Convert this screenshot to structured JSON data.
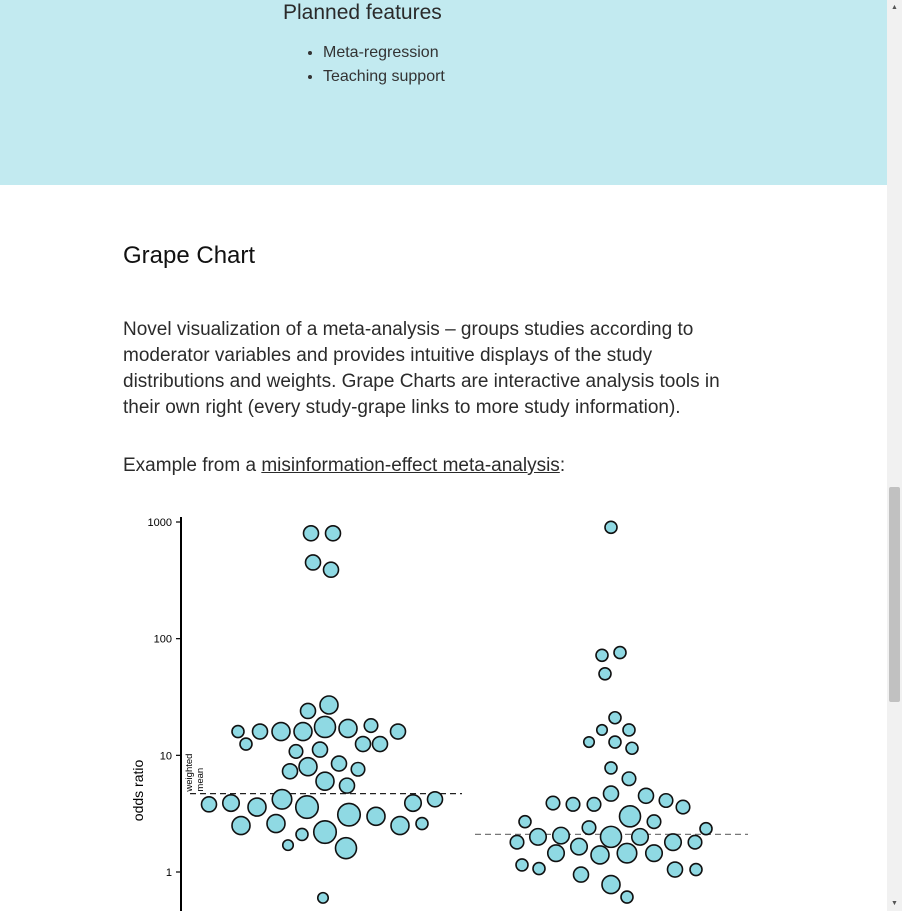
{
  "planned": {
    "title": "Planned features",
    "items": [
      "Meta-regression",
      "Teaching support"
    ]
  },
  "section": {
    "title": "Grape Chart",
    "description": "Novel visualization of a meta-analysis – groups studies according to moderator variables and provides intuitive displays of the study distributions and weights. Grape Charts are interactive analysis tools in their own right (every study-grape links to more study information).",
    "example_prefix": "Example from a ",
    "example_link": "misinformation-effect meta-analysis",
    "example_suffix": ":"
  },
  "colors": {
    "band": "#c2eaf0",
    "grape_fill": "#8fd9e3",
    "grape_stroke": "#111111"
  },
  "icons": {
    "scroll_up": "triangle-up-icon",
    "scroll_down": "triangle-down-icon"
  },
  "chart_data": {
    "type": "scatter",
    "ylabel": "odds ratio",
    "yscale": "log",
    "ylim": [
      0.5,
      1000
    ],
    "yticks": [
      1,
      10,
      100,
      1000
    ],
    "ytick_labels": [
      "1",
      "10",
      "100",
      "1000"
    ],
    "mean_label": "weighted mean",
    "groups": [
      {
        "weighted_mean": 4.7,
        "points": [
          {
            "dx": -12,
            "y": 800,
            "w": 1
          },
          {
            "dx": 10,
            "y": 800,
            "w": 1
          },
          {
            "dx": -10,
            "y": 450,
            "w": 1
          },
          {
            "dx": 8,
            "y": 390,
            "w": 1
          },
          {
            "dx": -15,
            "y": 24,
            "w": 1
          },
          {
            "dx": 6,
            "y": 27,
            "w": 1.2
          },
          {
            "dx": -85,
            "y": 16,
            "w": 0.8
          },
          {
            "dx": -63,
            "y": 16,
            "w": 1
          },
          {
            "dx": -42,
            "y": 16,
            "w": 1.2
          },
          {
            "dx": -20,
            "y": 16,
            "w": 1.2
          },
          {
            "dx": 2,
            "y": 17.5,
            "w": 1.4
          },
          {
            "dx": 25,
            "y": 17,
            "w": 1.2
          },
          {
            "dx": 48,
            "y": 18,
            "w": 0.9
          },
          {
            "dx": 75,
            "y": 16,
            "w": 1
          },
          {
            "dx": -77,
            "y": 12.5,
            "w": 0.8
          },
          {
            "dx": -27,
            "y": 10.8,
            "w": 0.9
          },
          {
            "dx": -3,
            "y": 11.2,
            "w": 1
          },
          {
            "dx": 16,
            "y": 8.5,
            "w": 1
          },
          {
            "dx": 40,
            "y": 12.5,
            "w": 1
          },
          {
            "dx": 57,
            "y": 12.5,
            "w": 1
          },
          {
            "dx": -33,
            "y": 7.3,
            "w": 1
          },
          {
            "dx": -15,
            "y": 8,
            "w": 1.2
          },
          {
            "dx": 35,
            "y": 7.6,
            "w": 0.9
          },
          {
            "dx": 2,
            "y": 6,
            "w": 1.2
          },
          {
            "dx": 24,
            "y": 5.5,
            "w": 1
          },
          {
            "dx": -114,
            "y": 3.8,
            "w": 1
          },
          {
            "dx": -92,
            "y": 3.9,
            "w": 1.1
          },
          {
            "dx": -66,
            "y": 3.6,
            "w": 1.2
          },
          {
            "dx": -41,
            "y": 4.2,
            "w": 1.3
          },
          {
            "dx": -16,
            "y": 3.6,
            "w": 1.5
          },
          {
            "dx": 26,
            "y": 3.1,
            "w": 1.5
          },
          {
            "dx": 53,
            "y": 3,
            "w": 1.2
          },
          {
            "dx": 90,
            "y": 3.9,
            "w": 1.1
          },
          {
            "dx": 112,
            "y": 4.2,
            "w": 1
          },
          {
            "dx": -82,
            "y": 2.5,
            "w": 1.2
          },
          {
            "dx": -47,
            "y": 2.6,
            "w": 1.2
          },
          {
            "dx": 2,
            "y": 2.2,
            "w": 1.5
          },
          {
            "dx": 77,
            "y": 2.5,
            "w": 1.2
          },
          {
            "dx": 99,
            "y": 2.6,
            "w": 0.8
          },
          {
            "dx": -21,
            "y": 2.1,
            "w": 0.8
          },
          {
            "dx": -35,
            "y": 1.7,
            "w": 0.7
          },
          {
            "dx": 23,
            "y": 1.6,
            "w": 1.4
          },
          {
            "dx": 0,
            "y": 0.6,
            "w": 0.7
          }
        ]
      },
      {
        "weighted_mean": 2.1,
        "points": [
          {
            "dx": 0,
            "y": 900,
            "w": 0.8
          },
          {
            "dx": -9,
            "y": 72,
            "w": 0.8
          },
          {
            "dx": 9,
            "y": 76,
            "w": 0.8
          },
          {
            "dx": -6,
            "y": 50,
            "w": 0.8
          },
          {
            "dx": 4,
            "y": 21,
            "w": 0.8
          },
          {
            "dx": -9,
            "y": 16.5,
            "w": 0.7
          },
          {
            "dx": 18,
            "y": 16.5,
            "w": 0.8
          },
          {
            "dx": -22,
            "y": 13,
            "w": 0.7
          },
          {
            "dx": 4,
            "y": 13,
            "w": 0.8
          },
          {
            "dx": 21,
            "y": 11.5,
            "w": 0.8
          },
          {
            "dx": 0,
            "y": 7.8,
            "w": 0.8
          },
          {
            "dx": 18,
            "y": 6.3,
            "w": 0.9
          },
          {
            "dx": -58,
            "y": 3.9,
            "w": 0.9
          },
          {
            "dx": -38,
            "y": 3.8,
            "w": 0.9
          },
          {
            "dx": -17,
            "y": 3.8,
            "w": 0.9
          },
          {
            "dx": 0,
            "y": 4.7,
            "w": 1
          },
          {
            "dx": 35,
            "y": 4.5,
            "w": 1
          },
          {
            "dx": 55,
            "y": 4.1,
            "w": 0.9
          },
          {
            "dx": 72,
            "y": 3.6,
            "w": 0.9
          },
          {
            "dx": -86,
            "y": 2.7,
            "w": 0.8
          },
          {
            "dx": -22,
            "y": 2.4,
            "w": 0.9
          },
          {
            "dx": 19,
            "y": 3,
            "w": 1.4
          },
          {
            "dx": 43,
            "y": 2.7,
            "w": 0.9
          },
          {
            "dx": 95,
            "y": 2.35,
            "w": 0.8
          },
          {
            "dx": -73,
            "y": 2,
            "w": 1.1
          },
          {
            "dx": -50,
            "y": 2.05,
            "w": 1.1
          },
          {
            "dx": 0,
            "y": 2,
            "w": 1.4
          },
          {
            "dx": 29,
            "y": 2,
            "w": 1.1
          },
          {
            "dx": -94,
            "y": 1.8,
            "w": 0.9
          },
          {
            "dx": -32,
            "y": 1.65,
            "w": 1.1
          },
          {
            "dx": 62,
            "y": 1.8,
            "w": 1.1
          },
          {
            "dx": 84,
            "y": 1.8,
            "w": 0.9
          },
          {
            "dx": -55,
            "y": 1.45,
            "w": 1.1
          },
          {
            "dx": -11,
            "y": 1.4,
            "w": 1.2
          },
          {
            "dx": 16,
            "y": 1.45,
            "w": 1.3
          },
          {
            "dx": 43,
            "y": 1.45,
            "w": 1.1
          },
          {
            "dx": -89,
            "y": 1.15,
            "w": 0.8
          },
          {
            "dx": -72,
            "y": 1.07,
            "w": 0.8
          },
          {
            "dx": -30,
            "y": 0.95,
            "w": 1
          },
          {
            "dx": 64,
            "y": 1.05,
            "w": 1
          },
          {
            "dx": 85,
            "y": 1.05,
            "w": 0.8
          },
          {
            "dx": 0,
            "y": 0.78,
            "w": 1.2
          },
          {
            "dx": 16,
            "y": 0.61,
            "w": 0.8
          }
        ]
      }
    ]
  }
}
